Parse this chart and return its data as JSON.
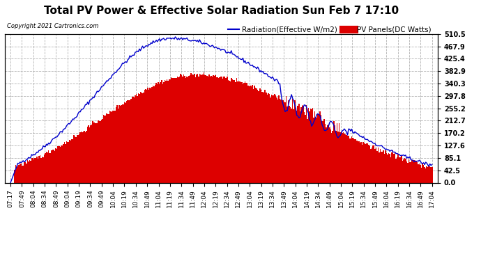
{
  "title": "Total PV Power & Effective Solar Radiation Sun Feb 7 17:10",
  "copyright": "Copyright 2021 Cartronics.com",
  "legend_radiation": "Radiation(Effective W/m2)",
  "legend_pv": "PV Panels(DC Watts)",
  "ylabel_right_values": [
    510.5,
    467.9,
    425.4,
    382.9,
    340.3,
    297.8,
    255.2,
    212.7,
    170.2,
    127.6,
    85.1,
    42.5,
    0.0
  ],
  "ymax": 510.5,
  "ymin": 0.0,
  "radiation_color": "#0000cc",
  "pv_color": "#dd0000",
  "background_color": "#ffffff",
  "grid_color": "#aaaaaa",
  "title_fontsize": 11,
  "tick_fontsize": 6.5,
  "x_tick_labels": [
    "07:17",
    "07:49",
    "08:04",
    "08:34",
    "08:49",
    "09:04",
    "09:19",
    "09:34",
    "09:49",
    "10:04",
    "10:19",
    "10:34",
    "10:49",
    "11:04",
    "11:19",
    "11:34",
    "11:49",
    "12:04",
    "12:19",
    "12:34",
    "12:49",
    "13:04",
    "13:19",
    "13:34",
    "13:49",
    "14:04",
    "14:19",
    "14:34",
    "14:49",
    "15:04",
    "15:19",
    "15:34",
    "15:49",
    "16:04",
    "16:19",
    "16:34",
    "16:49",
    "17:04"
  ]
}
